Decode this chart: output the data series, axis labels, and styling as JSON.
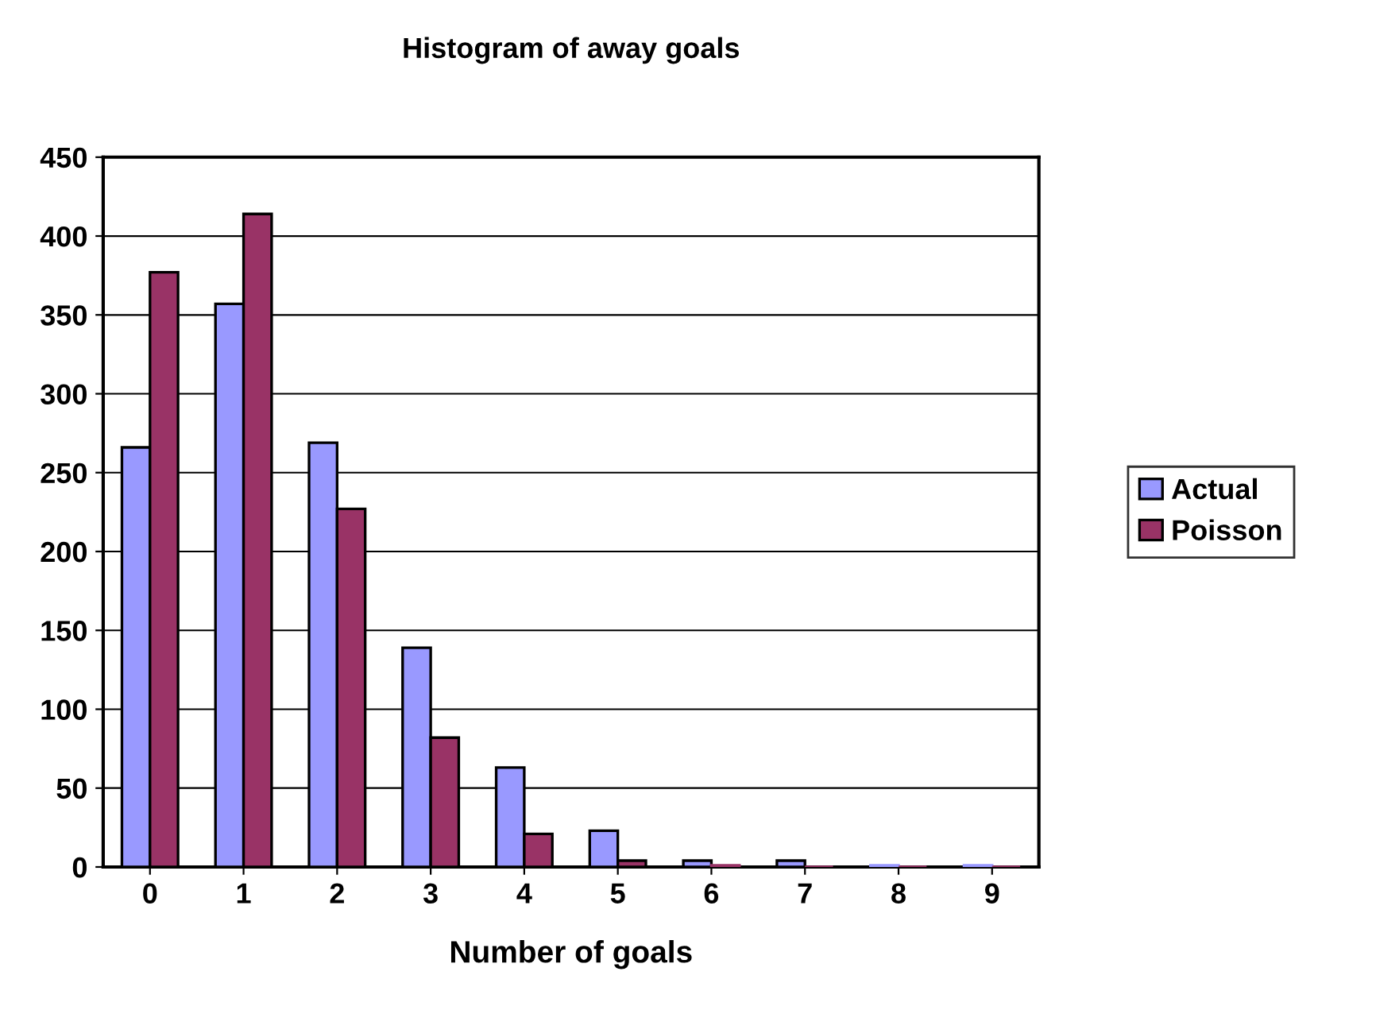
{
  "chart_data": {
    "type": "bar",
    "title": "Histogram of away goals",
    "xlabel": "Number of goals",
    "categories": [
      "0",
      "1",
      "2",
      "3",
      "4",
      "5",
      "6",
      "7",
      "8",
      "9"
    ],
    "series": [
      {
        "name": "Actual",
        "color": "#9999ff",
        "values": [
          266,
          357,
          269,
          139,
          63,
          23,
          4,
          4,
          1,
          1
        ]
      },
      {
        "name": "Poisson",
        "color": "#993366",
        "values": [
          377,
          414,
          227,
          82,
          21,
          4,
          1,
          0,
          0,
          0
        ]
      }
    ],
    "ylim": [
      0,
      450
    ],
    "yticks": [
      0,
      50,
      100,
      150,
      200,
      250,
      300,
      350,
      400,
      450
    ],
    "grid": "y",
    "legend": "right"
  }
}
